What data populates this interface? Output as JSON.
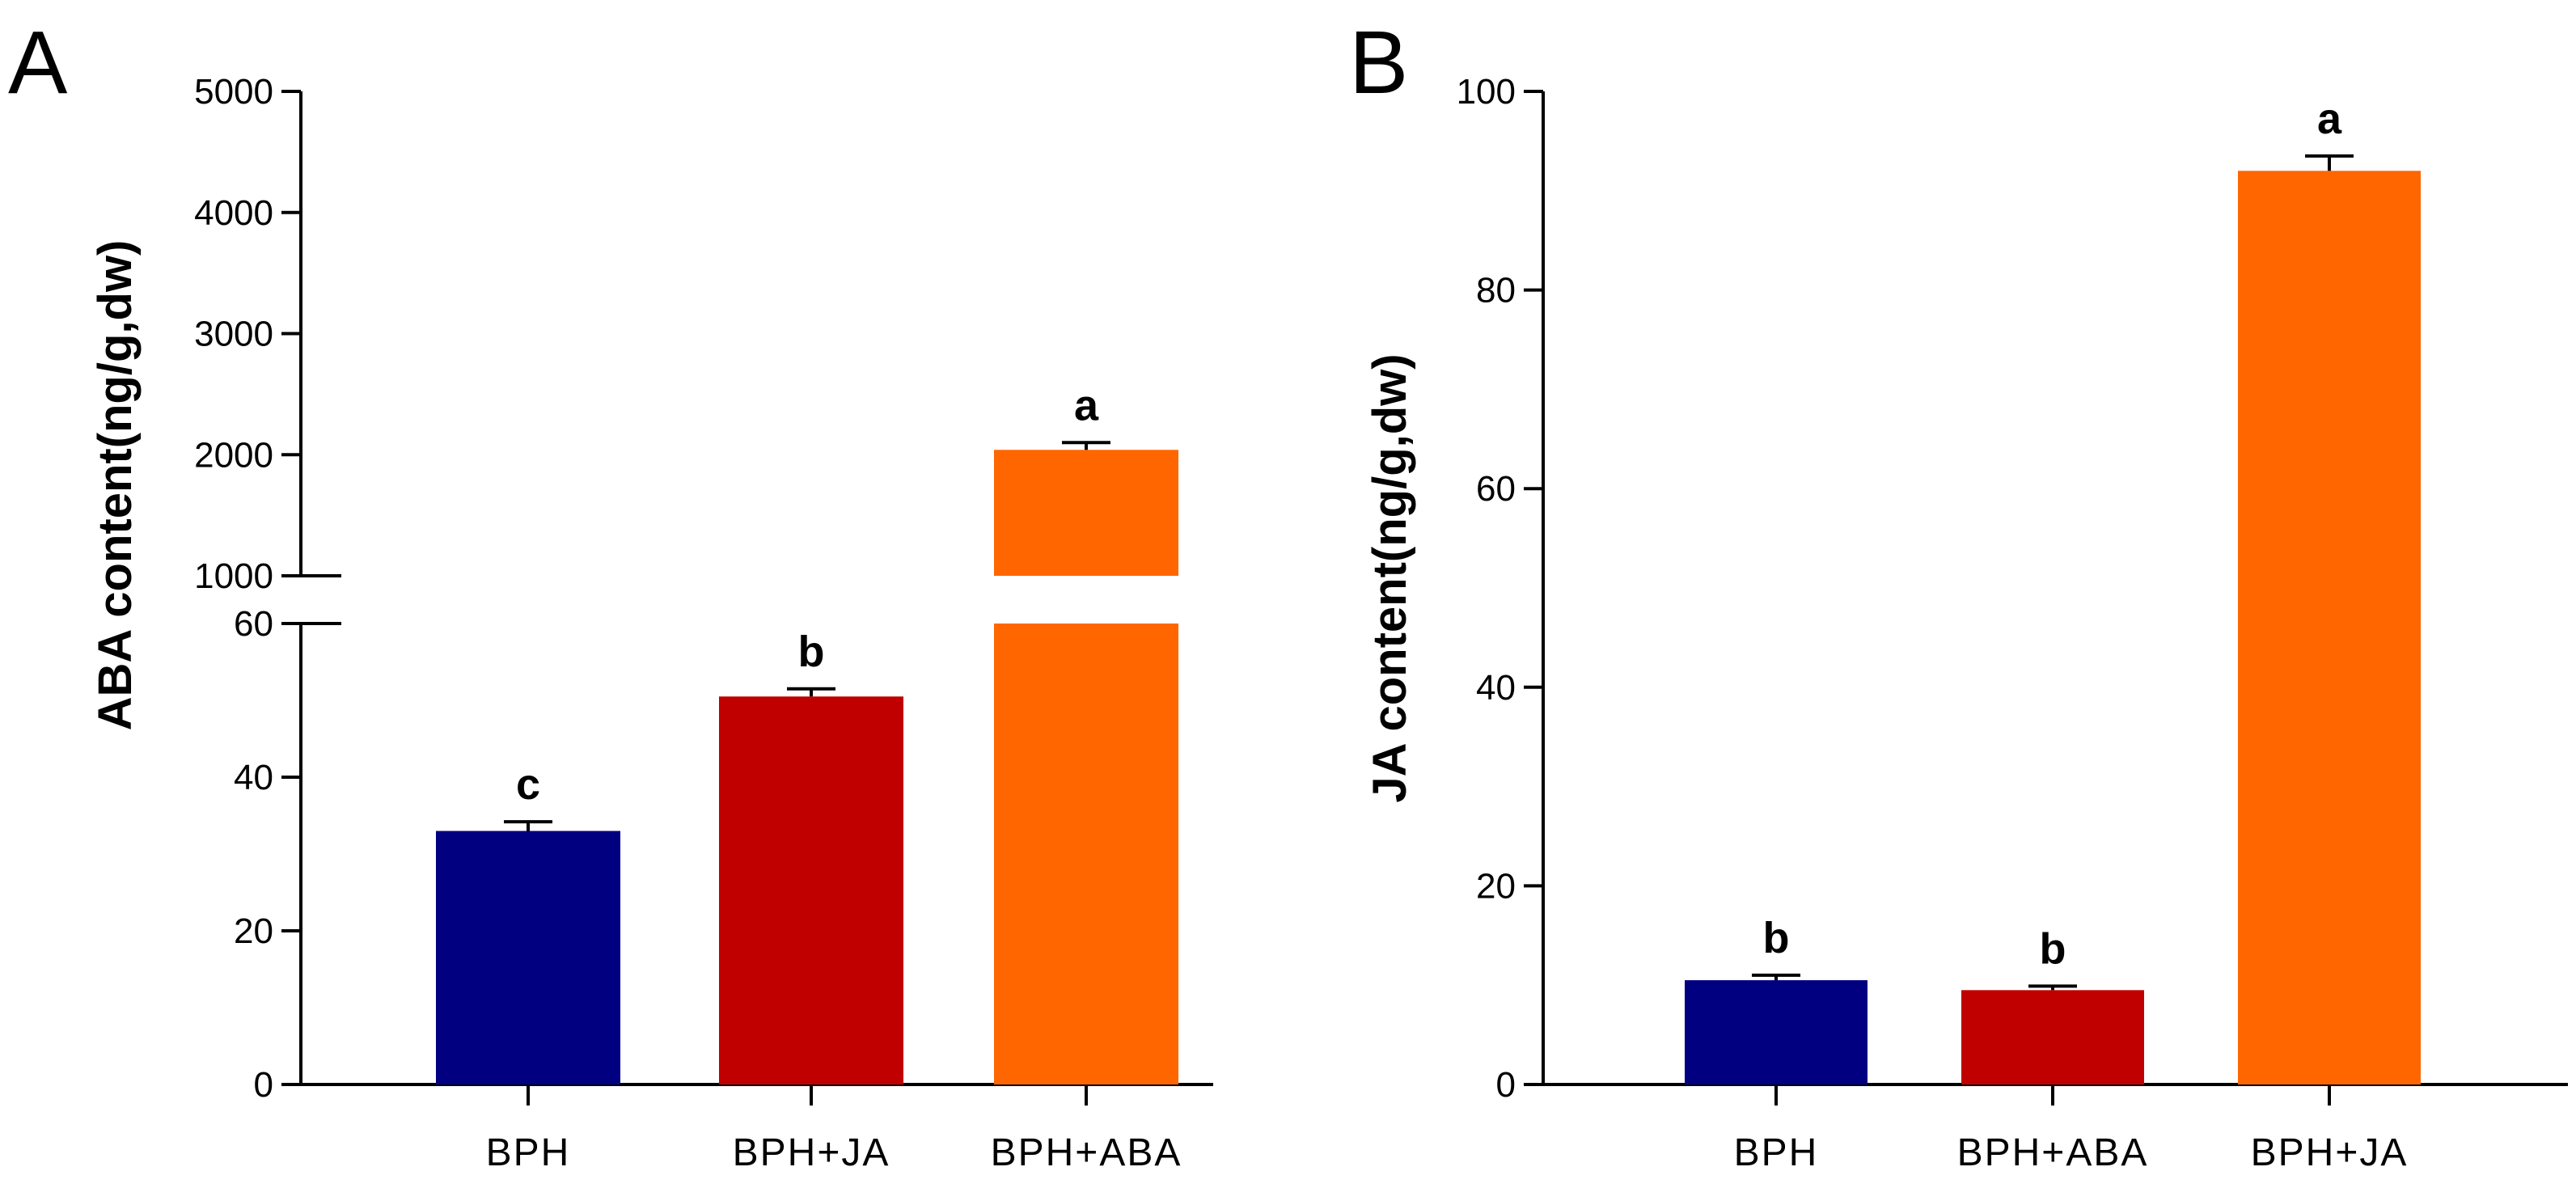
{
  "chart_data": [
    {
      "panel_label": "A",
      "type": "bar",
      "ylabel": "ABA content(ng/g,dw)",
      "xlabel": "",
      "axis_break": true,
      "lower_segment": {
        "ylim": [
          0,
          60
        ],
        "ticks": [
          0,
          20,
          40,
          60
        ]
      },
      "upper_segment": {
        "ylim": [
          1000,
          5000
        ],
        "ticks": [
          1000,
          2000,
          3000,
          4000,
          5000
        ]
      },
      "categories": [
        "BPH",
        "BPH+JA",
        "BPH+ABA"
      ],
      "values": [
        33,
        50.5,
        2040
      ],
      "errors": [
        1.2,
        1.0,
        60
      ],
      "significance": [
        "c",
        "b",
        "a"
      ],
      "colors": [
        "#000080",
        "#C00000",
        "#FF6600"
      ]
    },
    {
      "panel_label": "B",
      "type": "bar",
      "ylabel": "JA content(ng/g,dw)",
      "xlabel": "",
      "axis_break": false,
      "ylim": [
        0,
        100
      ],
      "ticks": [
        0,
        20,
        40,
        60,
        80,
        100
      ],
      "categories": [
        "BPH",
        "BPH+ABA",
        "BPH+JA"
      ],
      "values": [
        10.5,
        9.5,
        92
      ],
      "errors": [
        0.5,
        0.4,
        1.5
      ],
      "significance": [
        "b",
        "b",
        "a"
      ],
      "colors": [
        "#000080",
        "#C00000",
        "#FF6600"
      ]
    }
  ]
}
